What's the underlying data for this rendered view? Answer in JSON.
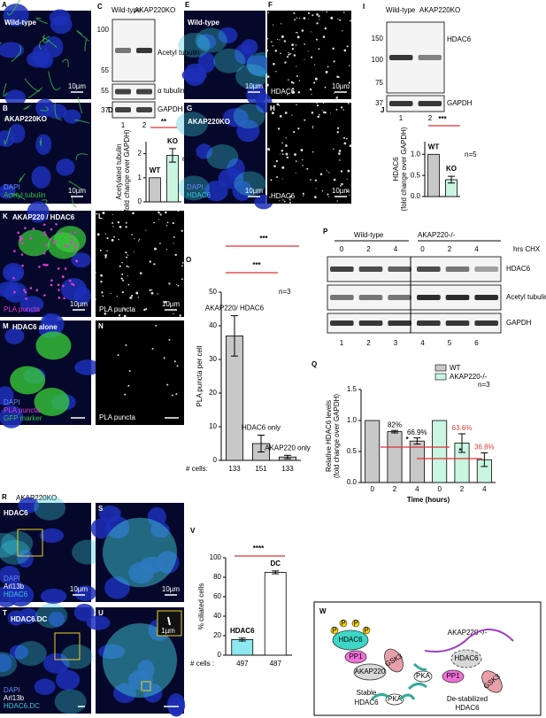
{
  "panels": {
    "A": {
      "letter": "A",
      "title": "Wild-type",
      "scale": "10µm"
    },
    "B": {
      "letter": "B",
      "title": "AKAP220KO",
      "channels": [
        "DAPI",
        "Acetyl tubulin"
      ],
      "scale": "10µm"
    },
    "C": {
      "letter": "C",
      "lanes_header": [
        "Wild-type",
        "AKAP220KO"
      ],
      "markers": [
        "100",
        "55",
        "55",
        "37"
      ],
      "bands": [
        "Acetyl tubulin",
        "α tubulin",
        "GAPDH"
      ],
      "lanes": [
        "1",
        "2"
      ]
    },
    "E": {
      "letter": "E",
      "title": "Wild-type",
      "scale": "10µm"
    },
    "F": {
      "letter": "F",
      "channel": "HDAC6",
      "scale": "10µm"
    },
    "G": {
      "letter": "G",
      "title": "AKAP220KO",
      "channels": [
        "DAPI",
        "HDAC6"
      ],
      "scale": "10µm"
    },
    "H": {
      "letter": "H",
      "channel": "HDAC6",
      "scale": "10µm"
    },
    "I": {
      "letter": "I",
      "lanes_header": [
        "Wild-type",
        "AKAP220KO"
      ],
      "markers": [
        "150",
        "100",
        "75",
        "37"
      ],
      "bands": [
        "HDAC6",
        "GAPDH"
      ],
      "lanes": [
        "1",
        "2"
      ]
    },
    "K": {
      "letter": "K",
      "title": "AKAP220 / HDAC6",
      "channel": "PLA puncta",
      "scale": "10µm"
    },
    "L": {
      "letter": "L",
      "channel": "PLA puncta",
      "scale": "10µm"
    },
    "M": {
      "letter": "M",
      "title": "HDAC6 alone",
      "channels": [
        "DAPI",
        "PLA puncta",
        "GFP marker"
      ]
    },
    "N": {
      "letter": "N",
      "channel": "PLA puncta"
    },
    "P": {
      "letter": "P",
      "groups": [
        "Wild-type",
        "AKAP220-/-"
      ],
      "unit": "hrs CHX",
      "times": [
        "0",
        "2",
        "4",
        "0",
        "2",
        "4"
      ],
      "bands": [
        "HDAC6",
        "Acetyl tubulin",
        "GAPDH"
      ],
      "lanes": [
        "1",
        "2",
        "3",
        "4",
        "5",
        "6"
      ]
    },
    "R": {
      "letter": "R",
      "header": "AKAP220KO",
      "title": "HDAC6",
      "channels": [
        "DAPI",
        "Arl13b",
        "HDAC6"
      ],
      "scale": "10µm"
    },
    "S": {
      "letter": "S",
      "scale": "10µm"
    },
    "T": {
      "letter": "T",
      "title": "HDAC6.DC",
      "channels": [
        "DAPI",
        "Arl13b",
        "HDAC6.DC"
      ]
    },
    "U": {
      "letter": "U",
      "inset_scale": "1µm"
    },
    "W": {
      "letter": "W",
      "title": "AKAP220 -/-",
      "phospho": "P",
      "left_nodes": [
        "HDAC6",
        "PP1",
        "AKAP220",
        "GSK3",
        "PKA"
      ],
      "left_caption": [
        "Stable",
        "HDAC6"
      ],
      "right_nodes": [
        "HDAC6",
        "PP1",
        "GSK3",
        "PKA"
      ],
      "right_caption": [
        "De-stabilized",
        "HDAC6"
      ]
    }
  },
  "chart_data": [
    {
      "type": "bar",
      "letter": "D",
      "ylabel": [
        "Acetylated tubulin",
        "(fold change over GAPDH)"
      ],
      "categories": [
        "WT",
        "KO"
      ],
      "values": [
        1,
        1.93
      ],
      "errors": [
        0,
        0.28
      ],
      "colors": [
        "#c8c8c8",
        "#c9f5e2"
      ],
      "ylim": [
        0,
        2.5
      ],
      "yticks": [
        0,
        1,
        2
      ],
      "annotations": [
        "**",
        "n=4"
      ]
    },
    {
      "type": "bar",
      "letter": "J",
      "ylabel": [
        "HDAC6",
        "(fold change over GAPDH)"
      ],
      "categories": [
        "WT",
        "KO"
      ],
      "values": [
        1,
        0.4
      ],
      "errors": [
        0,
        0.08
      ],
      "colors": [
        "#c8c8c8",
        "#c9f5e2"
      ],
      "ylim": [
        0,
        1.3
      ],
      "yticks": [
        {
          "value": 0,
          "label": "0.0"
        },
        {
          "value": 0.5,
          "label": "0.5"
        },
        {
          "value": 1,
          "label": "1.0"
        }
      ],
      "annotations": [
        "***",
        "n=5"
      ]
    },
    {
      "type": "bar",
      "letter": "O",
      "ylabel": [
        "PLA puncta per cell"
      ],
      "categories": [
        "AKAP220/ HDAC6",
        "HDAC6 only",
        "AKAP220 only"
      ],
      "values": [
        37,
        5,
        1
      ],
      "errors": [
        6,
        2.5,
        0.5
      ],
      "colors": [
        "#c8c8c8",
        "#c8c8c8",
        "#c8c8c8"
      ],
      "ylim": [
        0,
        50
      ],
      "yticks": [
        0,
        10,
        20,
        30,
        40,
        50
      ],
      "annotations": [
        "***",
        "***",
        "n=3"
      ],
      "cell_counts_label": "# cells:",
      "cell_counts": [
        133,
        151,
        133
      ]
    },
    {
      "type": "bar",
      "letter": "Q",
      "ylabel": [
        "Relative HDAC6 levels",
        "(fold change over GAPDH)"
      ],
      "xlabel": "Time (hours)",
      "categories": [
        "0",
        "2",
        "4",
        "0",
        "2",
        "4"
      ],
      "series": [
        {
          "name": "WT",
          "color": "#c8c8c8",
          "values": [
            1,
            0.82,
            0.669,
            null,
            null,
            null
          ],
          "errors": [
            0,
            0.02,
            0.05,
            null,
            null,
            null
          ],
          "value_labels": [
            null,
            "82%",
            "66.9%",
            null,
            null,
            null
          ]
        },
        {
          "name": "AKAP220-/-",
          "color": "#c9f5e2",
          "values": [
            null,
            null,
            null,
            1,
            0.636,
            0.368
          ],
          "errors": [
            null,
            null,
            null,
            0,
            0.15,
            0.11
          ],
          "value_labels": [
            null,
            null,
            null,
            null,
            "63.6%",
            "36.8%"
          ]
        }
      ],
      "ylim": [
        0,
        1.5
      ],
      "yticks": [
        {
          "value": 0,
          "label": "0.0"
        },
        {
          "value": 0.5,
          "label": "0.5"
        },
        {
          "value": 1,
          "label": "1.0"
        },
        {
          "value": 1.5,
          "label": "1.5"
        }
      ],
      "annotations": [
        "*",
        "*",
        "n=3"
      ]
    },
    {
      "type": "bar",
      "letter": "V",
      "ylabel": [
        "% ciliated cells"
      ],
      "categories": [
        "HDAC6",
        "DC"
      ],
      "values": [
        16,
        85
      ],
      "errors": [
        1.5,
        1.5
      ],
      "colors": [
        "#8fe8f0",
        "#ffffff"
      ],
      "ylim": [
        0,
        100
      ],
      "yticks": [
        0,
        20,
        40,
        60,
        80,
        100
      ],
      "annotations": [
        "****"
      ],
      "cell_counts_label": "# cells :",
      "cell_counts": [
        497,
        487
      ]
    }
  ]
}
